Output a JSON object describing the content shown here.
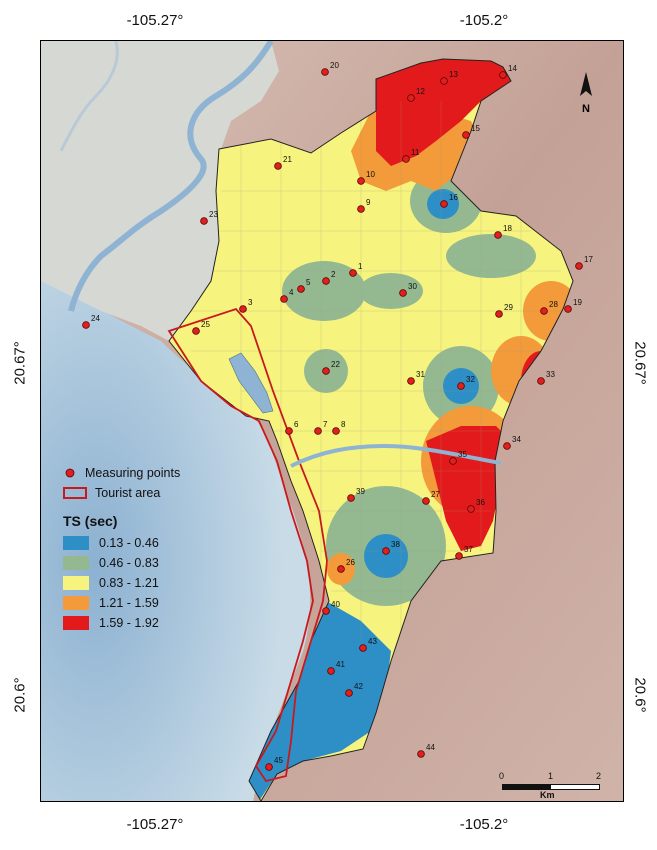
{
  "coords": {
    "top": [
      "-105.27°",
      "-105.2°"
    ],
    "bottom": [
      "-105.27°",
      "-105.2°"
    ],
    "left": [
      "20.67°",
      "20.6°"
    ],
    "right": [
      "20.67°",
      "20.6°"
    ]
  },
  "legend": {
    "measuring_points": "Measuring points",
    "tourist_area": "Tourist area",
    "ts_title": "TS (sec)",
    "classes": [
      {
        "label": "0.13 - 0.46",
        "color": "#2e8fc6"
      },
      {
        "label": "0.46 - 0.83",
        "color": "#94b991"
      },
      {
        "label": "0.83 - 1.21",
        "color": "#f6f47e"
      },
      {
        "label": "1.21 - 1.59",
        "color": "#f39a3a"
      },
      {
        "label": "1.59 - 1.92",
        "color": "#e31a1c"
      }
    ]
  },
  "north_label": "N",
  "scale": {
    "ticks": [
      "0",
      "1",
      "2"
    ],
    "unit": "Km"
  },
  "points": [
    "1",
    "2",
    "3",
    "4",
    "5",
    "6",
    "7",
    "8",
    "9",
    "10",
    "11",
    "12",
    "13",
    "14",
    "15",
    "16",
    "17",
    "18",
    "19",
    "20",
    "21",
    "22",
    "23",
    "24",
    "25",
    "26",
    "27",
    "28",
    "29",
    "30",
    "31",
    "32",
    "33",
    "34",
    "35",
    "36",
    "37",
    "38",
    "39",
    "40",
    "41",
    "42",
    "43",
    "44",
    "45"
  ],
  "colors": {
    "sea": "#a9c6dc",
    "land_west": "#d8dad5",
    "terrain": "#c9a99d",
    "point": "#e01f1f",
    "tourist": "#c8191e",
    "river": "#8fb3d3"
  }
}
